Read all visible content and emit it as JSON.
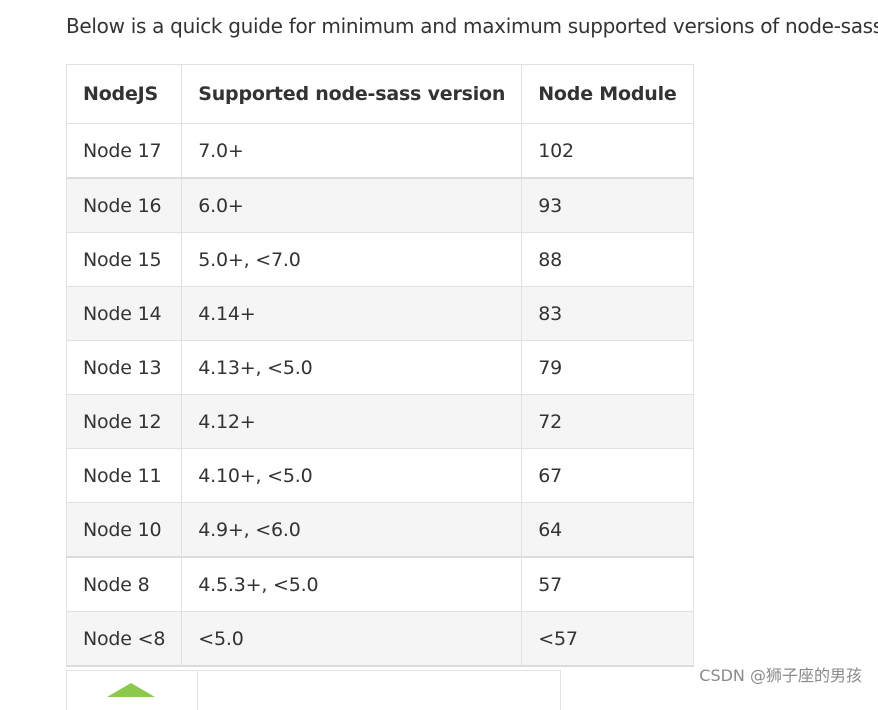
{
  "intro": "Below is a quick guide for minimum and maximum supported versions of node-sass:",
  "table": {
    "headers": [
      "NodeJS",
      "Supported node-sass version",
      "Node Module"
    ],
    "rows": [
      [
        "Node 17",
        "7.0+",
        "102"
      ],
      [
        "Node 16",
        "6.0+",
        "93"
      ],
      [
        "Node 15",
        "5.0+, <7.0",
        "88"
      ],
      [
        "Node 14",
        "4.14+",
        "83"
      ],
      [
        "Node 13",
        "4.13+, <5.0",
        "79"
      ],
      [
        "Node 12",
        "4.12+",
        "72"
      ],
      [
        "Node 11",
        "4.10+, <5.0",
        "67"
      ],
      [
        "Node 10",
        "4.9+, <6.0",
        "64"
      ],
      [
        "Node 8",
        "4.5.3+, <5.0",
        "57"
      ],
      [
        "Node <8",
        "<5.0",
        "<57"
      ]
    ]
  },
  "watermark": "CSDN @狮子座的男孩",
  "colors": {
    "text": "#333333",
    "border": "#dfe2e5",
    "stripe": "#f5f5f5",
    "logo": "#8cc84b"
  },
  "icons": {
    "partial_logo": "nodejs-hexagon-icon"
  }
}
